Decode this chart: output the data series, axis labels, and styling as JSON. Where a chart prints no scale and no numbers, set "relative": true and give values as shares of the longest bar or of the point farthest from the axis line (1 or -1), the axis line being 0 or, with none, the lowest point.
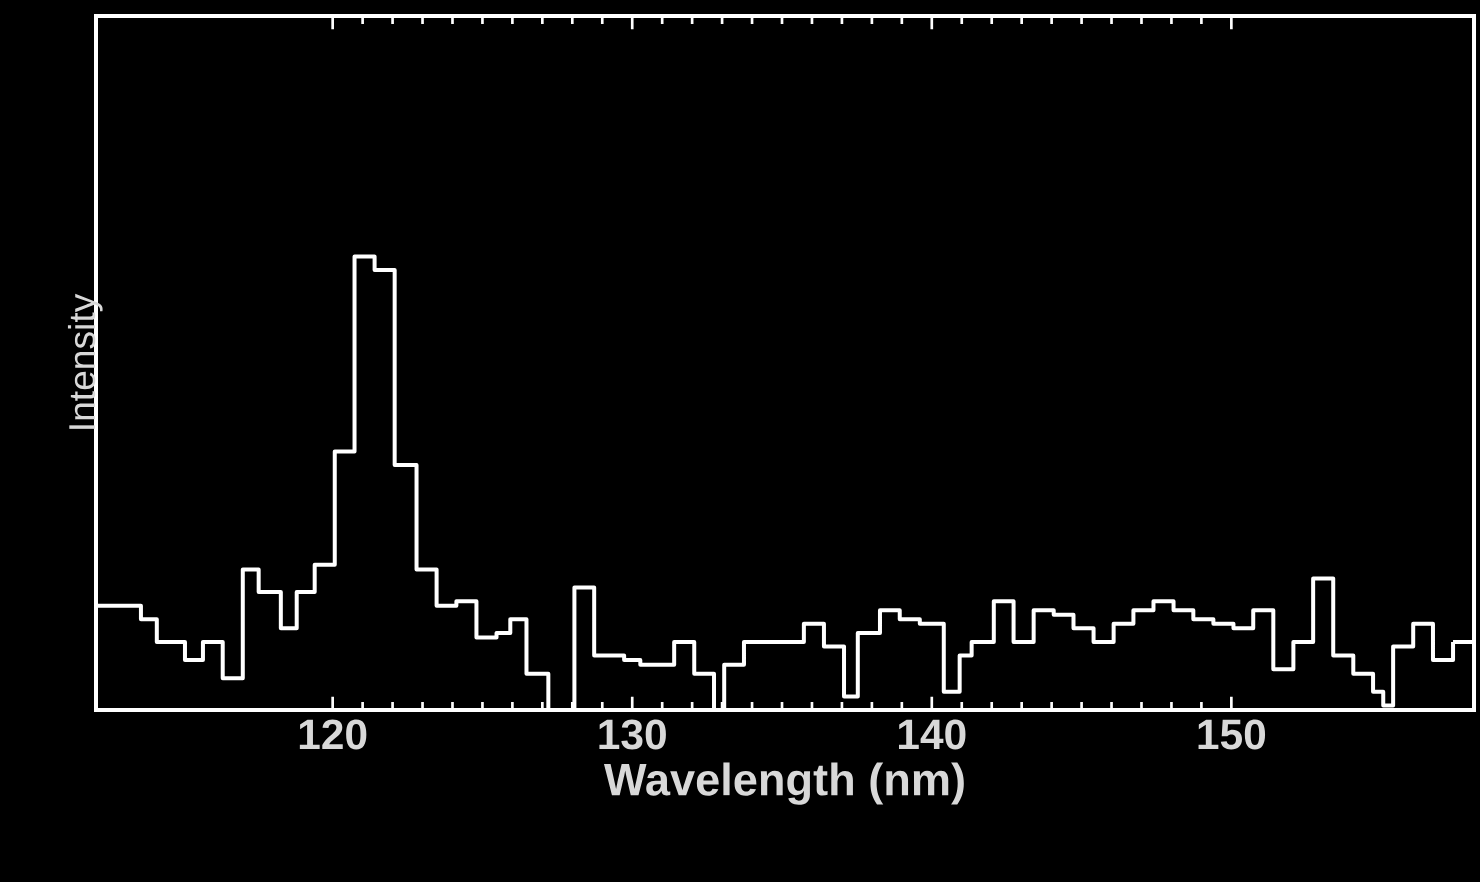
{
  "chart_data": {
    "type": "step",
    "relative": true,
    "xlabel": "Wavelength (nm)",
    "ylabel": "Intensity",
    "color": "#ffffff",
    "xlim": [
      112.1,
      158.1
    ],
    "xticks": [
      {
        "value": 120,
        "label": "120"
      },
      {
        "value": 130,
        "label": "130"
      },
      {
        "value": 140,
        "label": "140"
      },
      {
        "value": 150,
        "label": "150"
      }
    ],
    "x": [
      112.1,
      113.6,
      114.13,
      115.07,
      115.67,
      116.33,
      117.0,
      117.53,
      118.27,
      118.8,
      119.4,
      120.07,
      120.73,
      121.4,
      122.07,
      122.8,
      123.47,
      124.13,
      124.8,
      125.47,
      125.93,
      126.47,
      127.2,
      128.07,
      128.73,
      129.73,
      130.27,
      131.4,
      132.07,
      132.73,
      133.07,
      133.73,
      135.73,
      136.4,
      137.07,
      137.53,
      138.27,
      138.93,
      139.6,
      140.4,
      140.93,
      141.33,
      142.07,
      142.73,
      143.4,
      144.07,
      144.73,
      145.4,
      146.07,
      146.73,
      147.4,
      148.07,
      148.73,
      149.4,
      150.07,
      150.73,
      151.4,
      152.07,
      152.73,
      153.4,
      154.07,
      154.73,
      155.07,
      155.4,
      156.07,
      156.73,
      157.4
    ],
    "values": [
      0.23,
      0.2,
      0.15,
      0.11,
      0.15,
      0.07,
      0.31,
      0.26,
      0.18,
      0.26,
      0.32,
      0.57,
      1,
      0.97,
      0.54,
      0.31,
      0.23,
      0.24,
      0.16,
      0.17,
      0.2,
      0.08,
      0,
      0.27,
      0.12,
      0.11,
      0.1,
      0.15,
      0.08,
      0,
      0.1,
      0.15,
      0.19,
      0.14,
      0.03,
      0.17,
      0.22,
      0.2,
      0.19,
      0.04,
      0.12,
      0.15,
      0.24,
      0.15,
      0.22,
      0.21,
      0.18,
      0.15,
      0.19,
      0.22,
      0.24,
      0.22,
      0.2,
      0.19,
      0.18,
      0.22,
      0.09,
      0.15,
      0.29,
      0.12,
      0.08,
      0.04,
      0.01,
      0.14,
      0.19,
      0.11,
      0.15
    ]
  }
}
